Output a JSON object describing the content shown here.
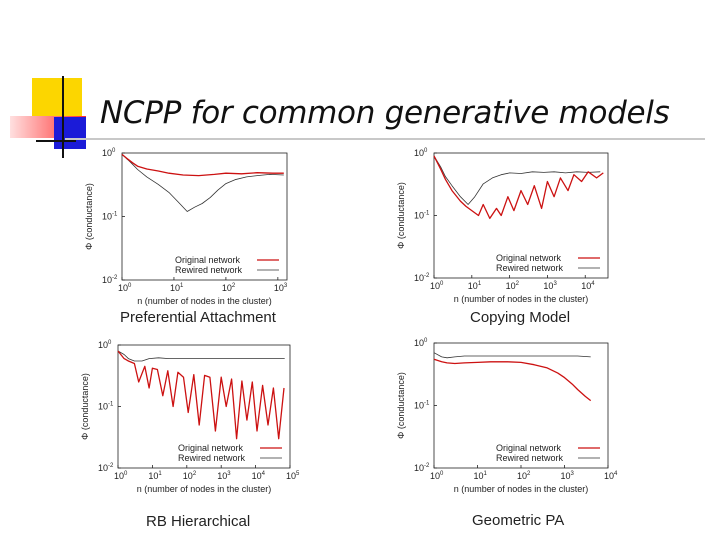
{
  "slide": {
    "title": "NCPP for common generative models",
    "colors": {
      "accent_yellow": "#fcd600",
      "accent_blue": "#1b1bd8",
      "accent_red": "#ff2b2b",
      "accent_pink": "#ffb3b3",
      "rule": "#c8c8c8"
    }
  },
  "chart_data": [
    {
      "type": "line",
      "caption": "Preferential Attachment",
      "xlabel": "n (number of nodes in the cluster)",
      "ylabel": "Φ (conductance)",
      "xscale": "log",
      "yscale": "log",
      "xlim": [
        1,
        1500
      ],
      "ylim": [
        0.01,
        1
      ],
      "x_ticks": [
        {
          "base": "10",
          "exp": "0"
        },
        {
          "base": "10",
          "exp": "1"
        },
        {
          "base": "10",
          "exp": "2"
        },
        {
          "base": "10",
          "exp": "3"
        }
      ],
      "y_ticks": [
        {
          "base": "10",
          "exp": "0"
        },
        {
          "base": "10",
          "exp": "-1"
        },
        {
          "base": "10",
          "exp": "-2"
        }
      ],
      "legend": [
        "Original network",
        "Rewired network"
      ],
      "legend_position": "bottom-right",
      "series": [
        {
          "name": "Original network",
          "color": "#cc1111",
          "x": [
            1,
            1.3,
            1.6,
            2,
            3,
            5,
            8,
            15,
            30,
            60,
            100,
            200,
            400,
            800,
            1300
          ],
          "y": [
            0.95,
            0.8,
            0.7,
            0.62,
            0.56,
            0.52,
            0.48,
            0.45,
            0.44,
            0.46,
            0.48,
            0.47,
            0.49,
            0.48,
            0.48
          ]
        },
        {
          "name": "Rewired network",
          "color": "#333333",
          "x": [
            1,
            1.5,
            2,
            3,
            5,
            8,
            12,
            18,
            25,
            35,
            50,
            70,
            100,
            150,
            250,
            400,
            700,
            1300
          ],
          "y": [
            0.95,
            0.7,
            0.55,
            0.42,
            0.32,
            0.24,
            0.17,
            0.12,
            0.14,
            0.16,
            0.2,
            0.26,
            0.33,
            0.38,
            0.42,
            0.44,
            0.46,
            0.45
          ]
        }
      ]
    },
    {
      "type": "line",
      "caption": "Copying Model",
      "xlabel": "n (number of nodes in the cluster)",
      "ylabel": "Φ (conductance)",
      "xscale": "log",
      "yscale": "log",
      "xlim": [
        1,
        40000
      ],
      "ylim": [
        0.01,
        1
      ],
      "x_ticks": [
        {
          "base": "10",
          "exp": "0"
        },
        {
          "base": "10",
          "exp": "1"
        },
        {
          "base": "10",
          "exp": "2"
        },
        {
          "base": "10",
          "exp": "3"
        },
        {
          "base": "10",
          "exp": "4"
        }
      ],
      "y_ticks": [
        {
          "base": "10",
          "exp": "0"
        },
        {
          "base": "10",
          "exp": "-1"
        },
        {
          "base": "10",
          "exp": "-2"
        }
      ],
      "legend": [
        "Original network",
        "Rewired network"
      ],
      "legend_position": "bottom-right",
      "series": [
        {
          "name": "Original network",
          "color": "#cc1111",
          "x": [
            1,
            1.5,
            2,
            3,
            5,
            7,
            10,
            15,
            20,
            30,
            45,
            60,
            90,
            130,
            200,
            300,
            450,
            700,
            1000,
            1500,
            2200,
            3500,
            5000,
            8000,
            12000,
            20000,
            30000
          ],
          "y": [
            0.9,
            0.55,
            0.38,
            0.25,
            0.17,
            0.14,
            0.12,
            0.1,
            0.15,
            0.09,
            0.13,
            0.1,
            0.2,
            0.12,
            0.25,
            0.15,
            0.3,
            0.13,
            0.35,
            0.2,
            0.4,
            0.25,
            0.45,
            0.35,
            0.5,
            0.4,
            0.48
          ]
        },
        {
          "name": "Rewired network",
          "color": "#333333",
          "x": [
            1,
            1.5,
            2,
            3,
            5,
            8,
            12,
            20,
            35,
            60,
            100,
            200,
            400,
            800,
            1500,
            3000,
            6000,
            12000,
            25000
          ],
          "y": [
            0.9,
            0.6,
            0.42,
            0.3,
            0.2,
            0.15,
            0.2,
            0.32,
            0.4,
            0.45,
            0.48,
            0.47,
            0.5,
            0.49,
            0.5,
            0.48,
            0.5,
            0.49,
            0.5
          ]
        }
      ]
    },
    {
      "type": "line",
      "caption": "RB Hierarchical",
      "xlabel": "n (number of nodes in the cluster)",
      "ylabel": "Φ (conductance)",
      "xscale": "log",
      "yscale": "log",
      "xlim": [
        1,
        100000
      ],
      "ylim": [
        0.01,
        1
      ],
      "x_ticks": [
        {
          "base": "10",
          "exp": "0"
        },
        {
          "base": "10",
          "exp": "1"
        },
        {
          "base": "10",
          "exp": "2"
        },
        {
          "base": "10",
          "exp": "3"
        },
        {
          "base": "10",
          "exp": "4"
        },
        {
          "base": "10",
          "exp": "5"
        }
      ],
      "y_ticks": [
        {
          "base": "10",
          "exp": "0"
        },
        {
          "base": "10",
          "exp": "-1"
        },
        {
          "base": "10",
          "exp": "-2"
        }
      ],
      "legend": [
        "Original network",
        "Rewired network"
      ],
      "legend_position": "bottom-right",
      "series": [
        {
          "name": "Original network",
          "color": "#cc1111",
          "x": [
            1,
            1.5,
            2,
            3,
            4,
            6,
            8,
            10,
            14,
            20,
            28,
            40,
            55,
            80,
            110,
            160,
            230,
            330,
            470,
            680,
            1000,
            1400,
            2000,
            2800,
            4000,
            5600,
            8000,
            11000,
            16000,
            23000,
            33000,
            47000,
            67000
          ],
          "y": [
            0.8,
            0.6,
            0.55,
            0.5,
            0.25,
            0.45,
            0.2,
            0.42,
            0.4,
            0.15,
            0.38,
            0.1,
            0.36,
            0.3,
            0.08,
            0.33,
            0.05,
            0.32,
            0.3,
            0.04,
            0.3,
            0.1,
            0.28,
            0.03,
            0.26,
            0.06,
            0.25,
            0.04,
            0.22,
            0.05,
            0.2,
            0.03,
            0.2
          ]
        },
        {
          "name": "Rewired network",
          "color": "#333333",
          "x": [
            1,
            1.5,
            2,
            3,
            5,
            8,
            15,
            30,
            60,
            120,
            250,
            500,
            1000,
            3000,
            10000,
            30000,
            70000
          ],
          "y": [
            0.8,
            0.7,
            0.6,
            0.55,
            0.55,
            0.6,
            0.62,
            0.6,
            0.6,
            0.6,
            0.6,
            0.6,
            0.6,
            0.6,
            0.6,
            0.6,
            0.6
          ]
        }
      ]
    },
    {
      "type": "line",
      "caption": "Geometric PA",
      "xlabel": "n (number of nodes in the cluster)",
      "ylabel": "Φ (conductance)",
      "xscale": "log",
      "yscale": "log",
      "xlim": [
        1,
        10000
      ],
      "ylim": [
        0.01,
        1
      ],
      "x_ticks": [
        {
          "base": "10",
          "exp": "0"
        },
        {
          "base": "10",
          "exp": "1"
        },
        {
          "base": "10",
          "exp": "2"
        },
        {
          "base": "10",
          "exp": "3"
        },
        {
          "base": "10",
          "exp": "4"
        }
      ],
      "y_ticks": [
        {
          "base": "10",
          "exp": "0"
        },
        {
          "base": "10",
          "exp": "-1"
        },
        {
          "base": "10",
          "exp": "-2"
        }
      ],
      "legend": [
        "Original network",
        "Rewired network"
      ],
      "legend_position": "bottom-right",
      "series": [
        {
          "name": "Original network",
          "color": "#cc1111",
          "x": [
            1,
            1.5,
            2,
            3,
            5,
            10,
            20,
            50,
            100,
            200,
            400,
            700,
            1000,
            1500,
            2000,
            3000,
            4000
          ],
          "y": [
            0.55,
            0.5,
            0.48,
            0.47,
            0.48,
            0.49,
            0.5,
            0.5,
            0.49,
            0.45,
            0.4,
            0.33,
            0.28,
            0.22,
            0.18,
            0.14,
            0.12
          ]
        },
        {
          "name": "Rewired network",
          "color": "#333333",
          "x": [
            1,
            1.5,
            2,
            3,
            5,
            10,
            20,
            50,
            100,
            200,
            500,
            1000,
            2000,
            4000
          ],
          "y": [
            0.7,
            0.6,
            0.58,
            0.6,
            0.62,
            0.62,
            0.62,
            0.62,
            0.62,
            0.62,
            0.62,
            0.62,
            0.62,
            0.6
          ]
        }
      ]
    }
  ]
}
